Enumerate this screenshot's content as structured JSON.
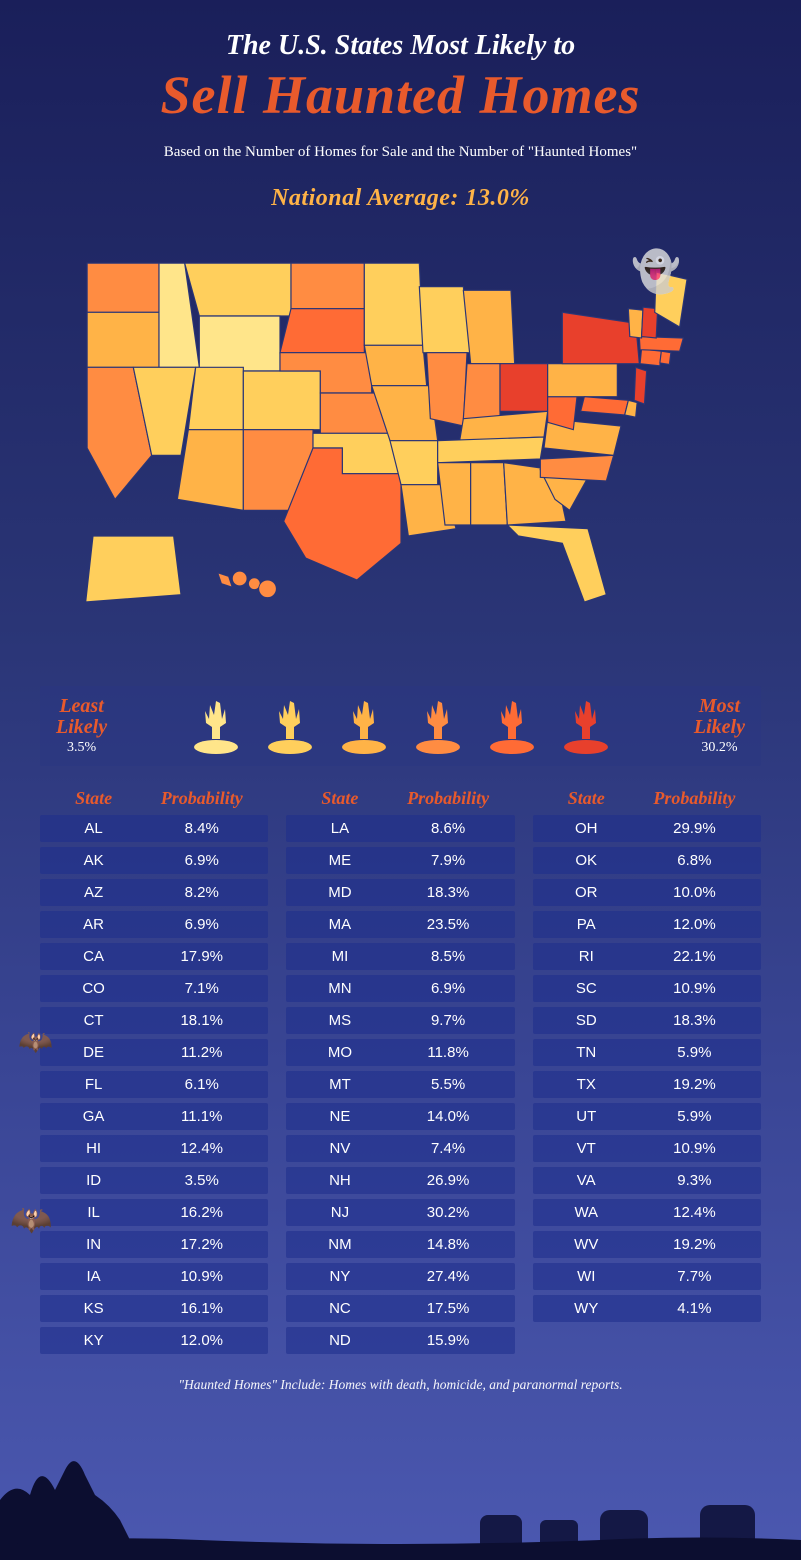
{
  "title_line1": "The U.S. States Most Likely to",
  "title_line2": "Sell Haunted Homes",
  "subtitle": "Based on the Number of Homes for Sale and the Number of \"Haunted Homes\"",
  "national_avg_label": "National Average: 13.0%",
  "map": {
    "type": "choropleth",
    "stroke_color": "#2a3576",
    "stroke_width": 1.6,
    "background": "transparent",
    "color_scale": {
      "stops": [
        {
          "threshold": 5.0,
          "color": "#ffe58a"
        },
        {
          "threshold": 8.0,
          "color": "#ffcf5c"
        },
        {
          "threshold": 12.0,
          "color": "#ffb347"
        },
        {
          "threshold": 18.0,
          "color": "#ff8c42"
        },
        {
          "threshold": 25.0,
          "color": "#ff6b35"
        },
        {
          "threshold": 99.0,
          "color": "#e8402c"
        }
      ]
    }
  },
  "legend": {
    "least_label_l1": "Least",
    "least_label_l2": "Likely",
    "least_value": "3.5%",
    "most_label_l1": "Most",
    "most_label_l2": "Likely",
    "most_value": "30.2%",
    "hand_colors": [
      "#ffe58a",
      "#ffcf5c",
      "#ffb347",
      "#ff8c42",
      "#ff6b35",
      "#e8402c"
    ]
  },
  "table": {
    "header_state": "State",
    "header_prob": "Probability",
    "row_bg": "rgba(30,45,140,0.55)",
    "header_color": "#e85a2c",
    "columns": [
      [
        {
          "state": "AL",
          "prob": "8.4%"
        },
        {
          "state": "AK",
          "prob": "6.9%"
        },
        {
          "state": "AZ",
          "prob": "8.2%"
        },
        {
          "state": "AR",
          "prob": "6.9%"
        },
        {
          "state": "CA",
          "prob": "17.9%"
        },
        {
          "state": "CO",
          "prob": "7.1%"
        },
        {
          "state": "CT",
          "prob": "18.1%"
        },
        {
          "state": "DE",
          "prob": "11.2%"
        },
        {
          "state": "FL",
          "prob": "6.1%"
        },
        {
          "state": "GA",
          "prob": "11.1%"
        },
        {
          "state": "HI",
          "prob": "12.4%"
        },
        {
          "state": "ID",
          "prob": "3.5%"
        },
        {
          "state": "IL",
          "prob": "16.2%"
        },
        {
          "state": "IN",
          "prob": "17.2%"
        },
        {
          "state": "IA",
          "prob": "10.9%"
        },
        {
          "state": "KS",
          "prob": "16.1%"
        },
        {
          "state": "KY",
          "prob": "12.0%"
        }
      ],
      [
        {
          "state": "LA",
          "prob": "8.6%"
        },
        {
          "state": "ME",
          "prob": "7.9%"
        },
        {
          "state": "MD",
          "prob": "18.3%"
        },
        {
          "state": "MA",
          "prob": "23.5%"
        },
        {
          "state": "MI",
          "prob": "8.5%"
        },
        {
          "state": "MN",
          "prob": "6.9%"
        },
        {
          "state": "MS",
          "prob": "9.7%"
        },
        {
          "state": "MO",
          "prob": "11.8%"
        },
        {
          "state": "MT",
          "prob": "5.5%"
        },
        {
          "state": "NE",
          "prob": "14.0%"
        },
        {
          "state": "NV",
          "prob": "7.4%"
        },
        {
          "state": "NH",
          "prob": "26.9%"
        },
        {
          "state": "NJ",
          "prob": "30.2%"
        },
        {
          "state": "NM",
          "prob": "14.8%"
        },
        {
          "state": "NY",
          "prob": "27.4%"
        },
        {
          "state": "NC",
          "prob": "17.5%"
        },
        {
          "state": "ND",
          "prob": "15.9%"
        }
      ],
      [
        {
          "state": "OH",
          "prob": "29.9%"
        },
        {
          "state": "OK",
          "prob": "6.8%"
        },
        {
          "state": "OR",
          "prob": "10.0%"
        },
        {
          "state": "PA",
          "prob": "12.0%"
        },
        {
          "state": "RI",
          "prob": "22.1%"
        },
        {
          "state": "SC",
          "prob": "10.9%"
        },
        {
          "state": "SD",
          "prob": "18.3%"
        },
        {
          "state": "TN",
          "prob": "5.9%"
        },
        {
          "state": "TX",
          "prob": "19.2%"
        },
        {
          "state": "UT",
          "prob": "5.9%"
        },
        {
          "state": "VT",
          "prob": "10.9%"
        },
        {
          "state": "VA",
          "prob": "9.3%"
        },
        {
          "state": "WA",
          "prob": "12.4%"
        },
        {
          "state": "WV",
          "prob": "19.2%"
        },
        {
          "state": "WI",
          "prob": "7.7%"
        },
        {
          "state": "WY",
          "prob": "4.1%"
        }
      ]
    ]
  },
  "state_values": {
    "AL": 8.4,
    "AK": 6.9,
    "AZ": 8.2,
    "AR": 6.9,
    "CA": 17.9,
    "CO": 7.1,
    "CT": 18.1,
    "DE": 11.2,
    "FL": 6.1,
    "GA": 11.1,
    "HI": 12.4,
    "ID": 3.5,
    "IL": 16.2,
    "IN": 17.2,
    "IA": 10.9,
    "KS": 16.1,
    "KY": 12.0,
    "LA": 8.6,
    "ME": 7.9,
    "MD": 18.3,
    "MA": 23.5,
    "MI": 8.5,
    "MN": 6.9,
    "MS": 9.7,
    "MO": 11.8,
    "MT": 5.5,
    "NE": 14.0,
    "NV": 7.4,
    "NH": 26.9,
    "NJ": 30.2,
    "NM": 14.8,
    "NY": 27.4,
    "NC": 17.5,
    "ND": 15.9,
    "OH": 29.9,
    "OK": 6.8,
    "OR": 10.0,
    "PA": 12.0,
    "RI": 22.1,
    "SC": 10.9,
    "SD": 18.3,
    "TN": 5.9,
    "TX": 19.2,
    "UT": 5.9,
    "VT": 10.9,
    "VA": 9.3,
    "WA": 12.4,
    "WV": 19.2,
    "WI": 7.7,
    "WY": 4.1
  },
  "footnote": "\"Haunted Homes\" Include: Homes with death, homicide, and paranormal reports."
}
